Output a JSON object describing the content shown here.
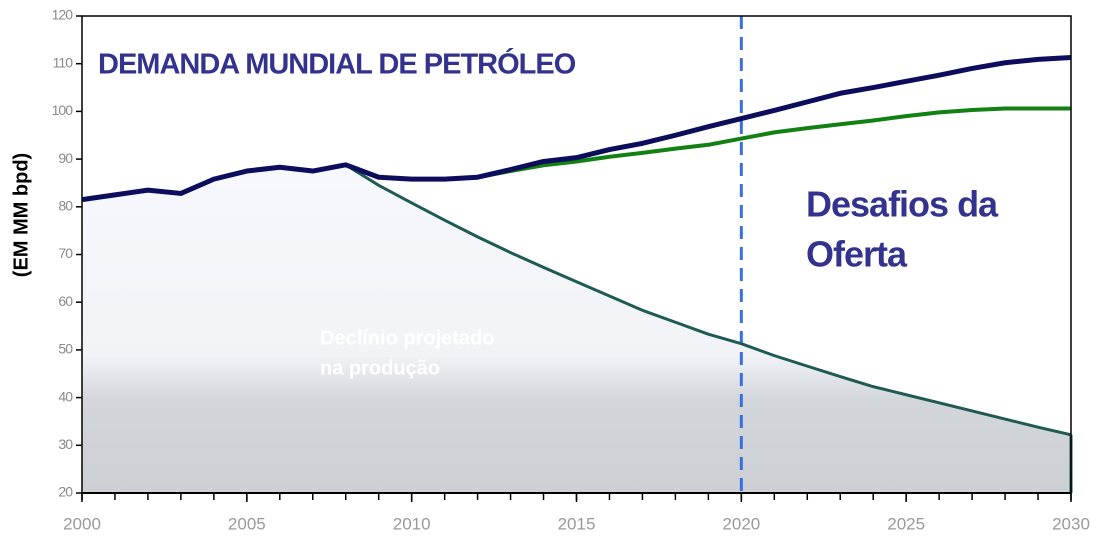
{
  "chart_data": {
    "type": "line",
    "title": "DEMANDA MUNDIAL DE PETRÓLEO",
    "ylabel": "(EM MM bpd)",
    "annotations": [
      {
        "lines": [
          "Desafios da",
          "Oferta"
        ]
      },
      {
        "lines": [
          "Declínio projetado",
          "na produção"
        ]
      }
    ],
    "x": [
      2000,
      2001,
      2002,
      2003,
      2004,
      2005,
      2006,
      2007,
      2008,
      2009,
      2010,
      2011,
      2012,
      2013,
      2014,
      2015,
      2016,
      2017,
      2018,
      2019,
      2020,
      2021,
      2022,
      2023,
      2024,
      2025,
      2026,
      2027,
      2028,
      2029,
      2030
    ],
    "series": [
      {
        "color": "#1f5a55",
        "area": true,
        "values": [
          81.5,
          82.5,
          83.5,
          82.8,
          85.8,
          87.5,
          88.3,
          87.5,
          88.8,
          84.5,
          80.8,
          77.2,
          73.7,
          70.4,
          67.3,
          64.3,
          61.3,
          58.3,
          55.8,
          53.3,
          51.3,
          48.8,
          46.6,
          44.4,
          42.3,
          40.6,
          38.9,
          37.2,
          35.5,
          33.8,
          32.2
        ]
      },
      {
        "color": "#128012",
        "values": [
          null,
          null,
          null,
          null,
          null,
          null,
          null,
          null,
          null,
          null,
          null,
          null,
          86.2,
          87.5,
          88.7,
          89.5,
          90.5,
          91.3,
          92.2,
          93,
          94.3,
          95.6,
          96.5,
          97.3,
          98.1,
          99,
          99.8,
          100.3,
          100.6,
          100.6,
          100.6
        ]
      },
      {
        "color": "#0d0d5e",
        "values": [
          81.5,
          82.5,
          83.5,
          82.8,
          85.8,
          87.5,
          88.3,
          87.5,
          88.8,
          86.2,
          85.8,
          85.8,
          86.2,
          87.8,
          89.5,
          90.3,
          92,
          93.3,
          95,
          96.8,
          98.5,
          100.2,
          102,
          103.8,
          105,
          106.3,
          107.6,
          109,
          110.2,
          110.9,
          111.3
        ]
      }
    ],
    "vline": 2020,
    "vline_color": "#3a6fe0",
    "xlim": [
      2000,
      2030
    ],
    "xticks": [
      2000,
      2005,
      2010,
      2015,
      2020,
      2025,
      2030
    ],
    "ylim": [
      20,
      120
    ],
    "yticks": [
      20,
      30,
      40,
      50,
      60,
      70,
      80,
      90,
      100,
      110,
      120
    ]
  }
}
